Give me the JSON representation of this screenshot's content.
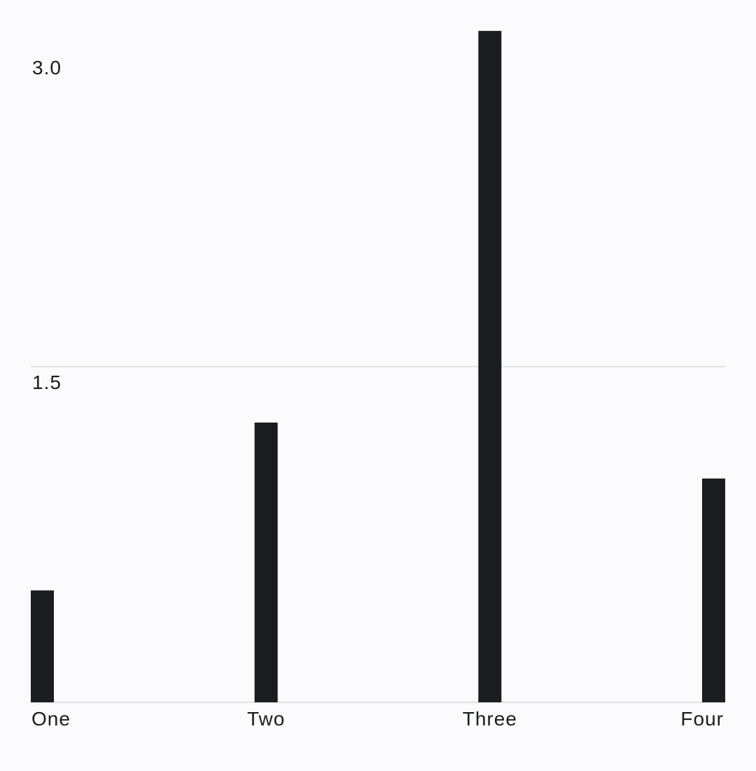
{
  "chart_data": {
    "type": "bar",
    "categories": [
      "One",
      "Two",
      "Three",
      "Four"
    ],
    "values": [
      0.5,
      1.25,
      3.0,
      1.0
    ],
    "ylim": [
      0,
      3.0
    ],
    "yticks": [
      1.5,
      3.0
    ],
    "ytick_labels": [
      "1.5",
      "3.0"
    ],
    "grid": true,
    "title": "",
    "xlabel": "",
    "ylabel": "",
    "colors": {
      "bar": "#1a1c1f",
      "text": "#1a1c1f",
      "grid": "#e1e2e6",
      "background": "#fbfbfd"
    }
  }
}
